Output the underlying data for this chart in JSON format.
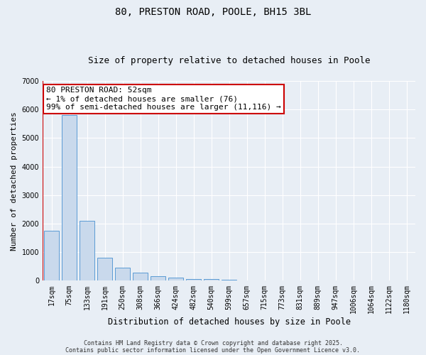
{
  "title_line1": "80, PRESTON ROAD, POOLE, BH15 3BL",
  "title_line2": "Size of property relative to detached houses in Poole",
  "xlabel": "Distribution of detached houses by size in Poole",
  "ylabel": "Number of detached properties",
  "categories": [
    "17sqm",
    "75sqm",
    "133sqm",
    "191sqm",
    "250sqm",
    "308sqm",
    "366sqm",
    "424sqm",
    "482sqm",
    "540sqm",
    "599sqm",
    "657sqm",
    "715sqm",
    "773sqm",
    "831sqm",
    "889sqm",
    "947sqm",
    "1006sqm",
    "1064sqm",
    "1122sqm",
    "1180sqm"
  ],
  "values": [
    1750,
    5800,
    2100,
    800,
    450,
    280,
    170,
    100,
    70,
    50,
    30,
    20,
    10,
    5,
    4,
    3,
    3,
    2,
    2,
    2,
    2
  ],
  "bar_color": "#c9d9ec",
  "bar_edge_color": "#5b9bd5",
  "ylim": [
    0,
    7000
  ],
  "yticks": [
    0,
    1000,
    2000,
    3000,
    4000,
    5000,
    6000,
    7000
  ],
  "annotation_text": "80 PRESTON ROAD: 52sqm\n← 1% of detached houses are smaller (76)\n99% of semi-detached houses are larger (11,116) →",
  "annotation_box_color": "#ffffff",
  "annotation_box_edge_color": "#cc0000",
  "bg_color": "#e8eef5",
  "grid_color": "#ffffff",
  "footer_line1": "Contains HM Land Registry data © Crown copyright and database right 2025.",
  "footer_line2": "Contains public sector information licensed under the Open Government Licence v3.0.",
  "title_fontsize": 10,
  "subtitle_fontsize": 9,
  "tick_fontsize": 7,
  "xlabel_fontsize": 8.5,
  "ylabel_fontsize": 8,
  "footer_fontsize": 6,
  "annotation_fontsize": 8
}
